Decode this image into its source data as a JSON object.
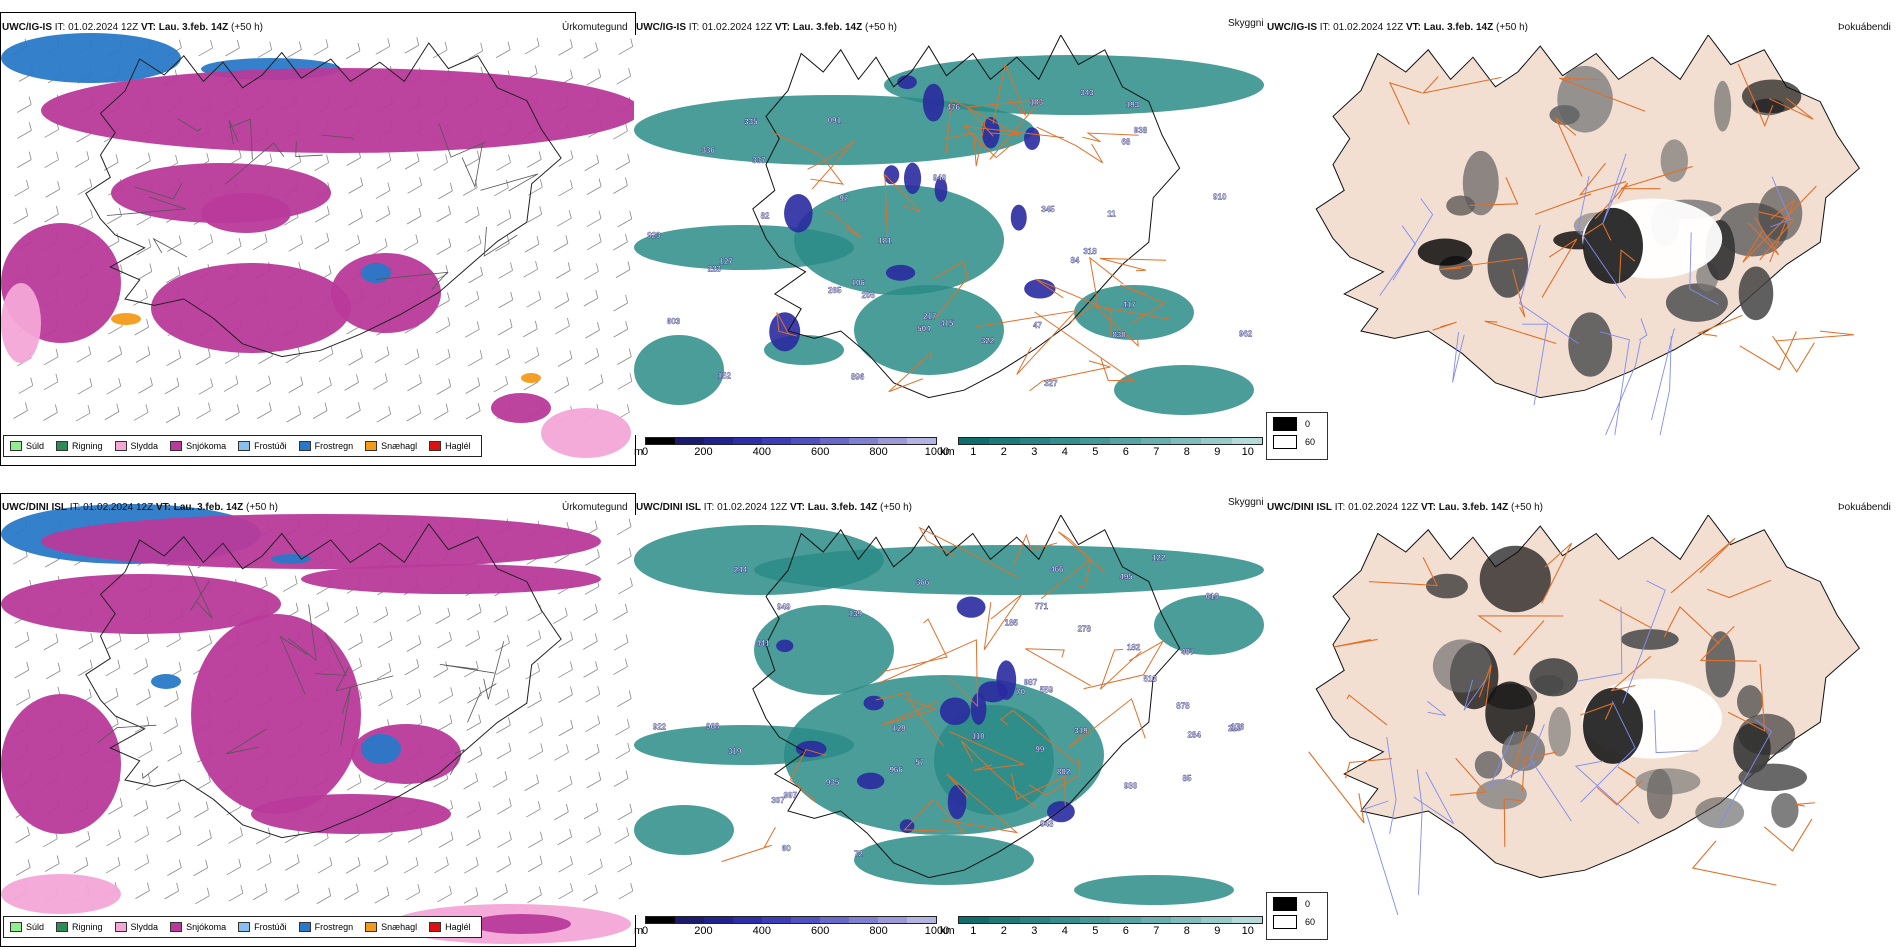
{
  "rows": [
    {
      "model": "UWC/IG-IS",
      "it_label": "IT:",
      "it_value": "01.02.2024 12Z",
      "vt_label": "VT:",
      "vt_value": "Lau. 3.feb. 14Z",
      "lead": "(+50 h)",
      "precip_title": "Úrkomutegund",
      "vis_title": "Skyggni",
      "fog_title": "Þokuábendi",
      "vis_labels": [
        "335",
        "265",
        "217",
        "206",
        "938",
        "504",
        "091",
        "327",
        "336",
        "345",
        "183",
        "318",
        "603",
        "337",
        "97",
        "84",
        "68",
        "82",
        "193",
        "47",
        "415",
        "417",
        "322",
        "476",
        "127",
        "343",
        "181",
        "923",
        "11",
        "152",
        "910",
        "106",
        "223",
        "962",
        "896",
        "830",
        "940"
      ]
    },
    {
      "model": "UWC/DINI ISL",
      "it_label": "IT:",
      "it_value": "01.02.2024 12Z",
      "vt_label": "VT:",
      "vt_value": "Lau. 3.feb. 14Z",
      "lead": "(+50 h)",
      "precip_title": "Úrkomutegund",
      "vis_title": "Skyggni",
      "fog_title": "Þokuábendi",
      "vis_labels": [
        "922",
        "771",
        "943",
        "878",
        "930",
        "966",
        "466",
        "319",
        "495",
        "182",
        "559",
        "278",
        "219",
        "441",
        "513",
        "949",
        "935",
        "57",
        "185",
        "802",
        "85",
        "244",
        "366",
        "176",
        "129",
        "139",
        "613",
        "99",
        "284",
        "997",
        "987",
        "122",
        "319",
        "968",
        "307",
        "72",
        "407",
        "110",
        "70",
        "60"
      ]
    }
  ],
  "precip_legend": [
    {
      "label": "Súld",
      "color": "#90ee90"
    },
    {
      "label": "Rigning",
      "color": "#2e8b57"
    },
    {
      "label": "Slydda",
      "color": "#f4a6d7"
    },
    {
      "label": "Snjókoma",
      "color": "#b83a9a"
    },
    {
      "label": "Frostúði",
      "color": "#87c0ee"
    },
    {
      "label": "Frostregn",
      "color": "#2979c8"
    },
    {
      "label": "Snæhagl",
      "color": "#f39a1a"
    },
    {
      "label": "Haglél",
      "color": "#dd1111"
    }
  ],
  "vis_colorbar_m": {
    "unit": "m",
    "ticks": [
      "0",
      "200",
      "400",
      "600",
      "800",
      "1000"
    ],
    "colors": [
      "#000000",
      "#1a1a6e",
      "#22228f",
      "#2d2da8",
      "#3d3db8",
      "#5050c0",
      "#6868c8",
      "#8080d0",
      "#9a9ad8",
      "#b4b4e0"
    ]
  },
  "vis_colorbar_km": {
    "unit": "km",
    "ticks": [
      "1",
      "2",
      "3",
      "4",
      "5",
      "6",
      "7",
      "8",
      "9",
      "10"
    ],
    "colors": [
      "#0e6e6e",
      "#1a7a7a",
      "#268484",
      "#348e8e",
      "#449898",
      "#56a3a3",
      "#6aafaf",
      "#80bcbc",
      "#98caca",
      "#b6dada"
    ]
  },
  "fog_legend": [
    {
      "label": "0",
      "color": "#000000"
    },
    {
      "label": "60",
      "color": "#ffffff"
    }
  ],
  "colors": {
    "snow": "#b83a9a",
    "sleet": "#f4a6d7",
    "frz_rain": "#2979c8",
    "frz_drizzle": "#87c0ee",
    "snow_grains": "#f39a1a",
    "teal": "#2a8c86",
    "blue": "#2a2aa0",
    "land": "#f3dfd2",
    "roads": "#e0702a",
    "rivers": "#7f8cf0",
    "coast": "#000000"
  }
}
